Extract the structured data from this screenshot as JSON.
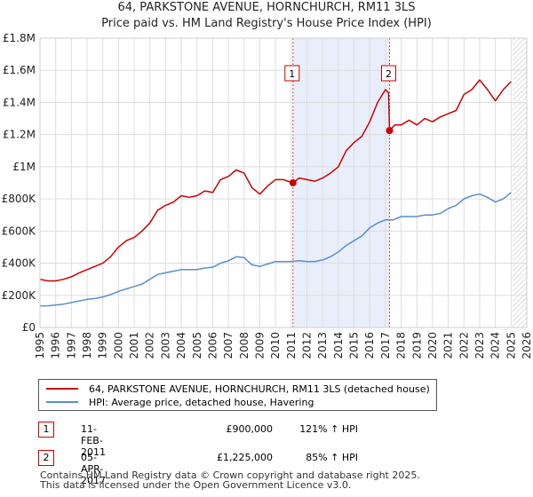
{
  "header": {
    "title_line1": "64, PARKSTONE AVENUE, HORNCHURCH, RM11 3LS",
    "title_line2": "Price paid vs. HM Land Registry's House Price Index (HPI)"
  },
  "chart_data": {
    "type": "line",
    "title": "64, PARKSTONE AVENUE, HORNCHURCH, RM11 3LS — Price paid vs. HM Land Registry's House Price Index (HPI)",
    "xlabel": "",
    "ylabel": "",
    "xlim": [
      1995,
      2026
    ],
    "ylim": [
      0,
      1800000
    ],
    "y_ticks": [
      {
        "value": 0,
        "label": "£0"
      },
      {
        "value": 200000,
        "label": "£200K"
      },
      {
        "value": 400000,
        "label": "£400K"
      },
      {
        "value": 600000,
        "label": "£600K"
      },
      {
        "value": 800000,
        "label": "£800K"
      },
      {
        "value": 1000000,
        "label": "£1M"
      },
      {
        "value": 1200000,
        "label": "£1.2M"
      },
      {
        "value": 1400000,
        "label": "£1.4M"
      },
      {
        "value": 1600000,
        "label": "£1.6M"
      },
      {
        "value": 1800000,
        "label": "£1.8M"
      }
    ],
    "x_ticks": [
      "1995",
      "1996",
      "1997",
      "1998",
      "1999",
      "2000",
      "2001",
      "2002",
      "2003",
      "2004",
      "2005",
      "2006",
      "2007",
      "2008",
      "2009",
      "2010",
      "2011",
      "2012",
      "2013",
      "2014",
      "2015",
      "2016",
      "2017",
      "2018",
      "2019",
      "2020",
      "2021",
      "2022",
      "2023",
      "2024",
      "2025",
      "2026"
    ],
    "grid": true,
    "shaded_region": [
      2011.11,
      2017.26
    ],
    "future_hatch_start": 2025.1,
    "series": [
      {
        "name": "64, PARKSTONE AVENUE, HORNCHURCH, RM11 3LS (detached house)",
        "color": "#cc0000",
        "x": [
          1995,
          1995.5,
          1996,
          1996.5,
          1997,
          1997.5,
          1998,
          1998.5,
          1999,
          1999.5,
          2000,
          2000.5,
          2001,
          2001.5,
          2002,
          2002.5,
          2003,
          2003.5,
          2004,
          2004.5,
          2005,
          2005.5,
          2006,
          2006.5,
          2007,
          2007.5,
          2008,
          2008.5,
          2009,
          2009.5,
          2010,
          2010.5,
          2011.11,
          2011.5,
          2012,
          2012.5,
          2013,
          2013.5,
          2014,
          2014.5,
          2015,
          2015.5,
          2016,
          2016.5,
          2017.0,
          2017.2,
          2017.26,
          2017.6,
          2018,
          2018.5,
          2019,
          2019.5,
          2020,
          2020.5,
          2021,
          2021.5,
          2022,
          2022.5,
          2023,
          2023.5,
          2024,
          2024.5,
          2025.0
        ],
        "values": [
          300000,
          290000,
          290000,
          300000,
          315000,
          340000,
          360000,
          380000,
          400000,
          440000,
          500000,
          540000,
          560000,
          600000,
          650000,
          730000,
          760000,
          780000,
          820000,
          810000,
          820000,
          850000,
          840000,
          920000,
          940000,
          980000,
          960000,
          870000,
          830000,
          880000,
          920000,
          920000,
          900000,
          930000,
          920000,
          910000,
          930000,
          960000,
          1000000,
          1100000,
          1150000,
          1190000,
          1280000,
          1400000,
          1480000,
          1460000,
          1225000,
          1260000,
          1260000,
          1290000,
          1260000,
          1300000,
          1280000,
          1310000,
          1330000,
          1350000,
          1450000,
          1480000,
          1540000,
          1480000,
          1410000,
          1480000,
          1530000
        ]
      },
      {
        "name": "HPI: Average price, detached house, Havering",
        "color": "#5b8ec8",
        "x": [
          1995,
          1995.5,
          1996,
          1996.5,
          1997,
          1997.5,
          1998,
          1998.5,
          1999,
          1999.5,
          2000,
          2000.5,
          2001,
          2001.5,
          2002,
          2002.5,
          2003,
          2003.5,
          2004,
          2004.5,
          2005,
          2005.5,
          2006,
          2006.5,
          2007,
          2007.5,
          2008,
          2008.5,
          2009,
          2009.5,
          2010,
          2010.5,
          2011,
          2011.5,
          2012,
          2012.5,
          2013,
          2013.5,
          2014,
          2014.5,
          2015,
          2015.5,
          2016,
          2016.5,
          2017,
          2017.5,
          2018,
          2018.5,
          2019,
          2019.5,
          2020,
          2020.5,
          2021,
          2021.5,
          2022,
          2022.5,
          2023,
          2023.5,
          2024,
          2024.5,
          2025.0
        ],
        "values": [
          135000,
          135000,
          140000,
          145000,
          155000,
          165000,
          175000,
          180000,
          190000,
          205000,
          225000,
          240000,
          255000,
          270000,
          300000,
          330000,
          340000,
          350000,
          360000,
          360000,
          360000,
          370000,
          375000,
          400000,
          415000,
          440000,
          435000,
          390000,
          380000,
          395000,
          410000,
          410000,
          410000,
          415000,
          410000,
          410000,
          420000,
          440000,
          470000,
          510000,
          540000,
          570000,
          620000,
          650000,
          670000,
          670000,
          690000,
          690000,
          690000,
          700000,
          700000,
          710000,
          740000,
          760000,
          800000,
          820000,
          830000,
          810000,
          780000,
          800000,
          840000
        ]
      }
    ],
    "markers": [
      {
        "label": "1",
        "x": 2011.11,
        "value": 900000
      },
      {
        "label": "2",
        "x": 2017.26,
        "value": 1225000
      }
    ]
  },
  "legend": {
    "items": [
      {
        "label": "64, PARKSTONE AVENUE, HORNCHURCH, RM11 3LS (detached house)",
        "color": "#cc0000"
      },
      {
        "label": "HPI: Average price, detached house, Havering",
        "color": "#5b8ec8"
      }
    ]
  },
  "transactions": [
    {
      "num": "1",
      "date": "11-FEB-2011",
      "price": "£900,000",
      "hpi": "121% ↑ HPI"
    },
    {
      "num": "2",
      "date": "05-APR-2017",
      "price": "£1,225,000",
      "hpi": "85% ↑ HPI"
    }
  ],
  "footer": {
    "line1": "Contains HM Land Registry data © Crown copyright and database right 2025.",
    "line2": "This data is licensed under the Open Government Licence v3.0."
  }
}
